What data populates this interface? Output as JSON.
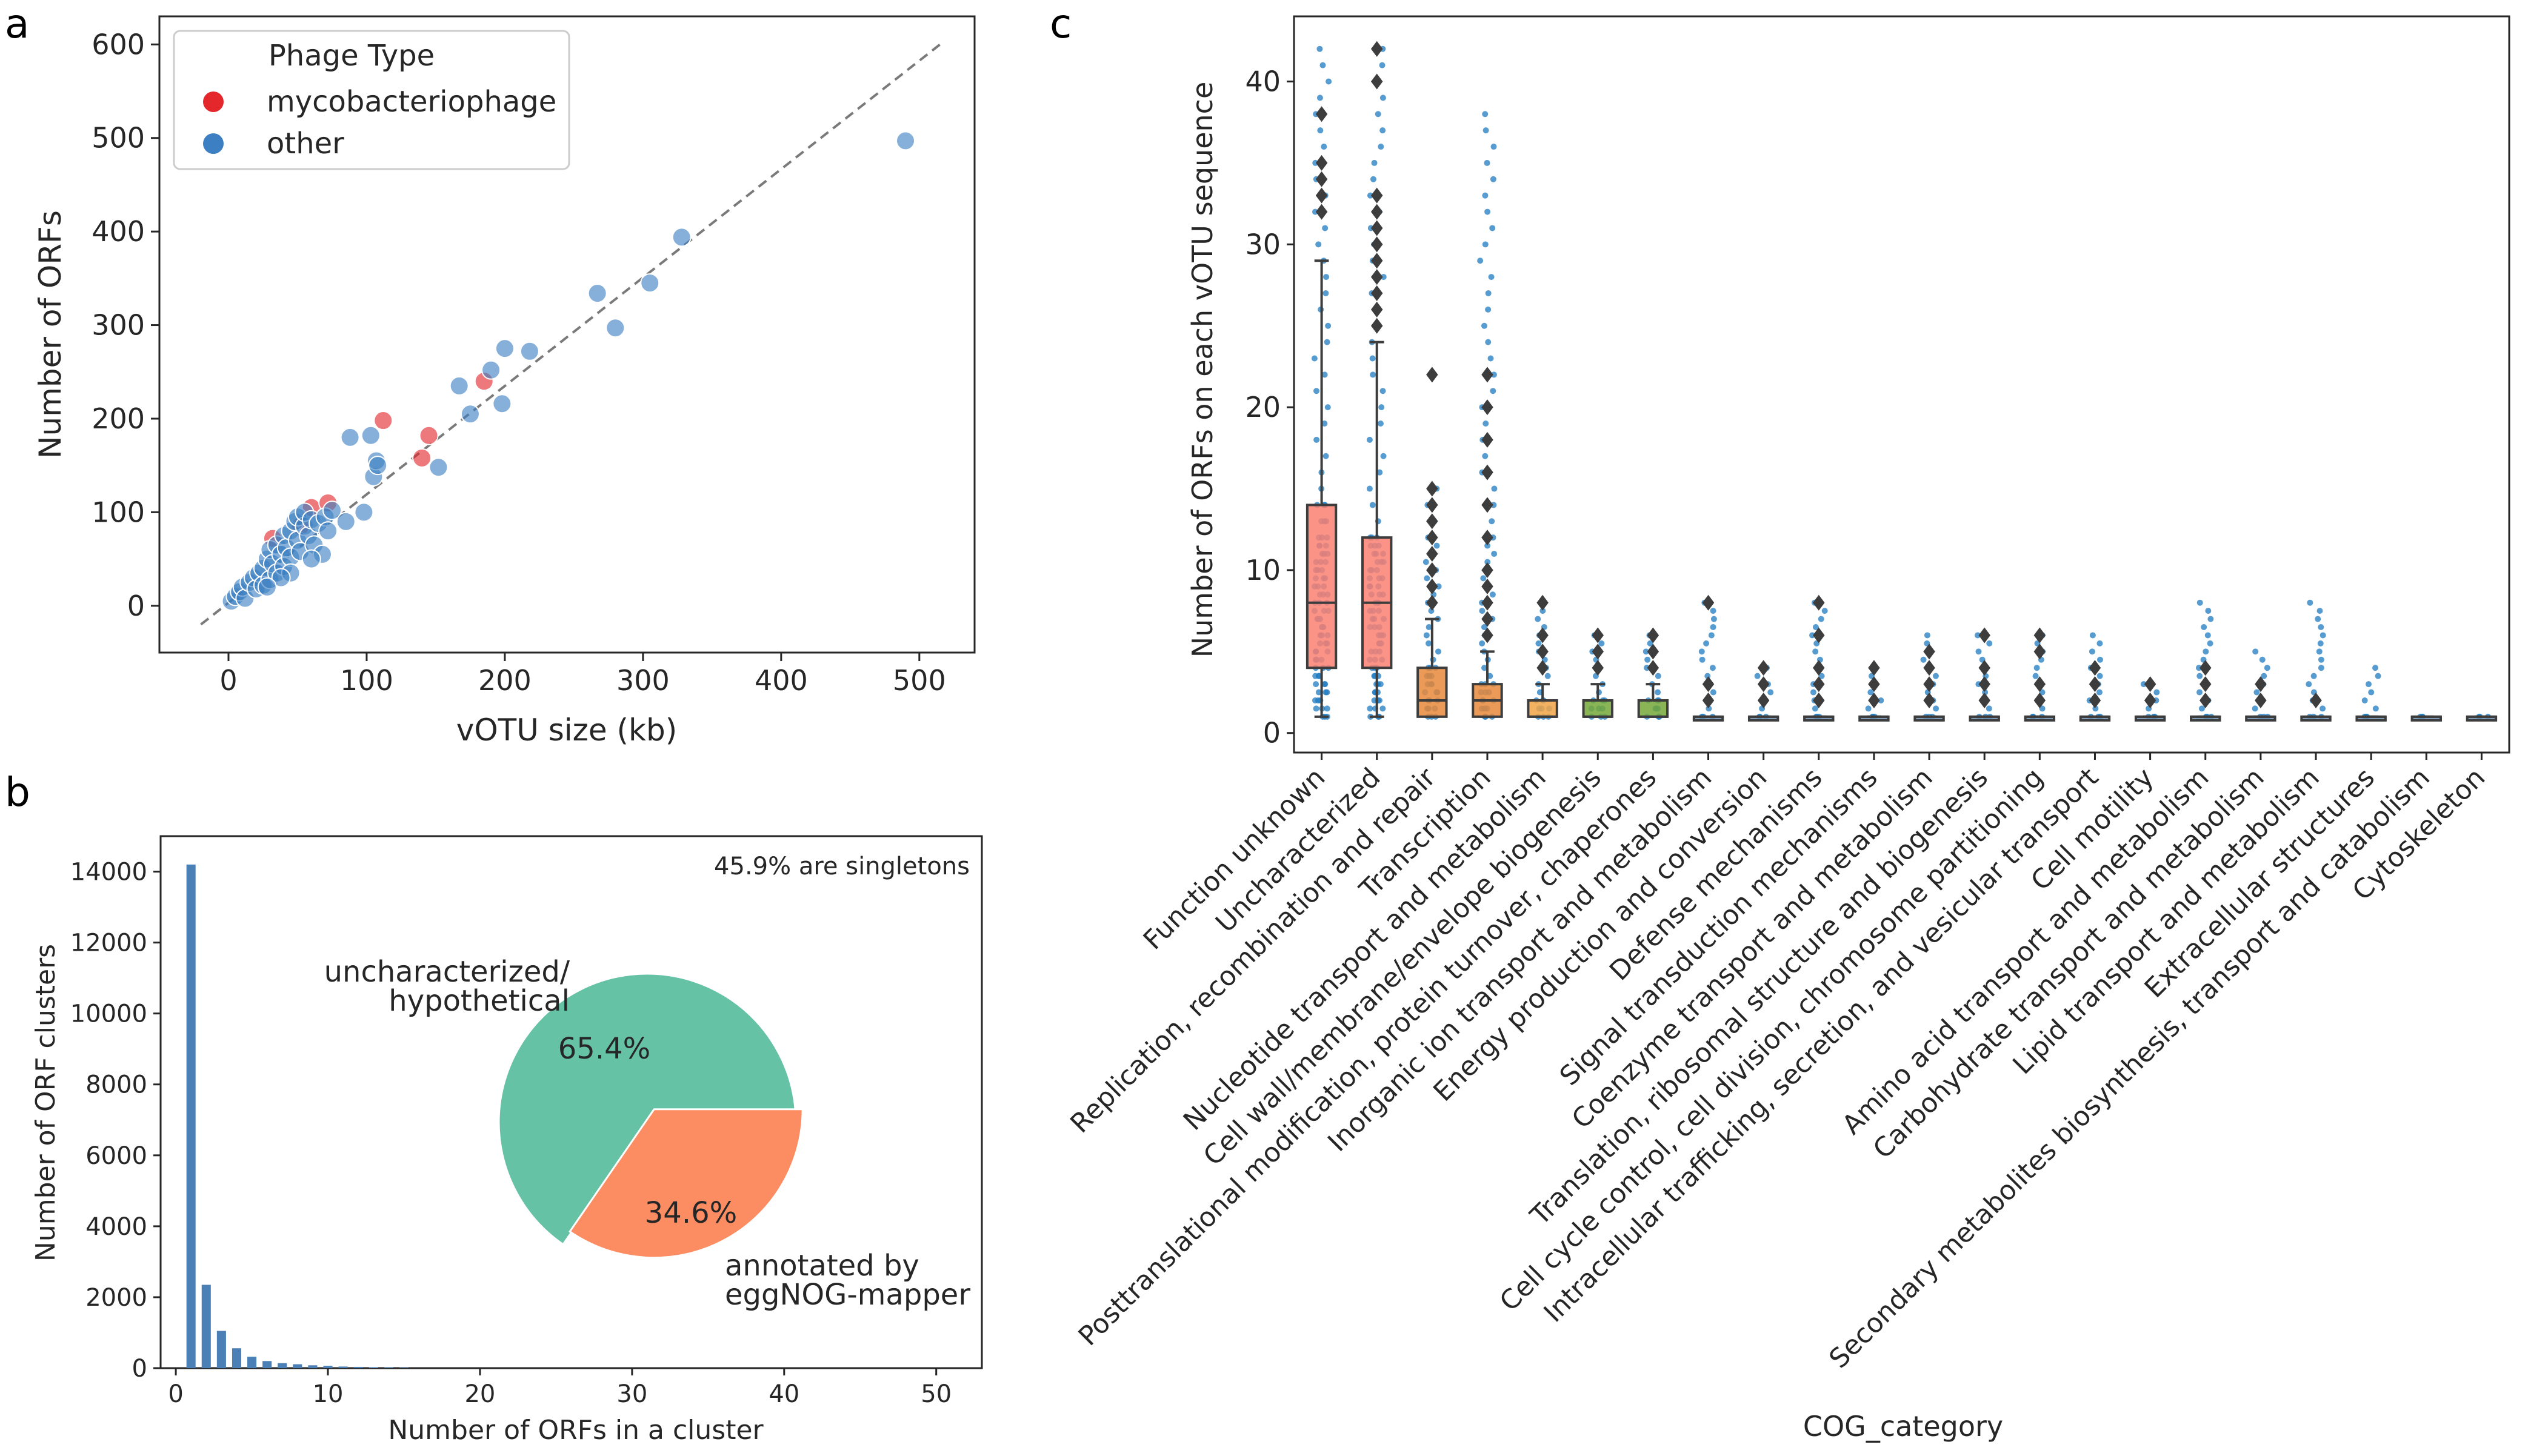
{
  "panels": {
    "a": "a",
    "b": "b",
    "c": "c"
  },
  "chart_data": [
    {
      "id": "a",
      "type": "scatter",
      "xlabel": "vOTU size (kb)",
      "ylabel": "Number of ORFs",
      "xlim": [
        -50,
        540
      ],
      "ylim": [
        -50,
        630
      ],
      "xticks": [
        0,
        100,
        200,
        300,
        400,
        500
      ],
      "yticks": [
        0,
        100,
        200,
        300,
        400,
        500,
        600
      ],
      "reference_line": {
        "from": [
          -20,
          -20
        ],
        "to": [
          515,
          600
        ]
      },
      "legend": {
        "title": "Phage Type",
        "position": "top-left"
      },
      "series": [
        {
          "name": "mycobacteriophage",
          "color": "#e3272b",
          "points": [
            [
              32,
              72
            ],
            [
              52,
              85
            ],
            [
              60,
              105
            ],
            [
              72,
              110
            ],
            [
              112,
              198
            ],
            [
              140,
              158
            ],
            [
              145,
              182
            ],
            [
              185,
              240
            ]
          ]
        },
        {
          "name": "other",
          "color": "#3c7fc2",
          "points": [
            [
              2,
              5
            ],
            [
              5,
              10
            ],
            [
              8,
              15
            ],
            [
              10,
              20
            ],
            [
              12,
              8
            ],
            [
              15,
              25
            ],
            [
              18,
              30
            ],
            [
              20,
              18
            ],
            [
              22,
              35
            ],
            [
              25,
              40
            ],
            [
              25,
              22
            ],
            [
              28,
              50
            ],
            [
              30,
              28
            ],
            [
              30,
              60
            ],
            [
              32,
              45
            ],
            [
              35,
              65
            ],
            [
              35,
              35
            ],
            [
              38,
              55
            ],
            [
              40,
              75
            ],
            [
              40,
              42
            ],
            [
              42,
              62
            ],
            [
              45,
              80
            ],
            [
              45,
              52
            ],
            [
              48,
              90
            ],
            [
              50,
              70
            ],
            [
              50,
              95
            ],
            [
              52,
              58
            ],
            [
              55,
              85
            ],
            [
              55,
              100
            ],
            [
              58,
              75
            ],
            [
              60,
              92
            ],
            [
              62,
              65
            ],
            [
              65,
              88
            ],
            [
              68,
              55
            ],
            [
              70,
              95
            ],
            [
              72,
              80
            ],
            [
              75,
              102
            ],
            [
              45,
              35
            ],
            [
              38,
              30
            ],
            [
              28,
              20
            ],
            [
              60,
              50
            ],
            [
              85,
              90
            ],
            [
              88,
              180
            ],
            [
              98,
              100
            ],
            [
              103,
              182
            ],
            [
              105,
              138
            ],
            [
              107,
              155
            ],
            [
              108,
              150
            ],
            [
              152,
              148
            ],
            [
              167,
              235
            ],
            [
              175,
              205
            ],
            [
              190,
              252
            ],
            [
              198,
              216
            ],
            [
              200,
              275
            ],
            [
              218,
              272
            ],
            [
              267,
              334
            ],
            [
              280,
              297
            ],
            [
              305,
              345
            ],
            [
              328,
              394
            ],
            [
              490,
              497
            ]
          ]
        }
      ]
    },
    {
      "id": "b",
      "type": "bar",
      "xlabel": "Number of ORFs in a cluster",
      "ylabel": "Number of ORF clusters",
      "xlim": [
        -1,
        53
      ],
      "ylim": [
        0,
        15000
      ],
      "xticks": [
        0,
        10,
        20,
        30,
        40,
        50
      ],
      "yticks": [
        0,
        2000,
        4000,
        6000,
        8000,
        10000,
        12000,
        14000
      ],
      "annotation": "45.9% are singletons",
      "bars": [
        [
          1,
          14200
        ],
        [
          2,
          2350
        ],
        [
          3,
          1050
        ],
        [
          4,
          560
        ],
        [
          5,
          320
        ],
        [
          6,
          200
        ],
        [
          7,
          140
        ],
        [
          8,
          110
        ],
        [
          9,
          80
        ],
        [
          10,
          65
        ],
        [
          11,
          45
        ],
        [
          12,
          35
        ],
        [
          13,
          25
        ],
        [
          14,
          20
        ],
        [
          15,
          15
        ]
      ],
      "inset_pie": {
        "slices": [
          {
            "label_lines": [
              "uncharacterized/",
              "hypothetical"
            ],
            "value": 65.4,
            "pct_label": "65.4%",
            "color": "#66c2a5"
          },
          {
            "label_lines": [
              "annotated by",
              "eggNOG-mapper"
            ],
            "value": 34.6,
            "pct_label": "34.6%",
            "color": "#fc8d62"
          }
        ]
      }
    },
    {
      "id": "c",
      "type": "box",
      "xlabel": "COG_category",
      "ylabel": "Number of ORFs on each vOTU sequence",
      "ylim": [
        -1.2,
        44
      ],
      "yticks": [
        0,
        10,
        20,
        30,
        40
      ],
      "categories": [
        {
          "name": "Function unknown",
          "color": "#fa8072",
          "q1": 4,
          "median": 8,
          "q3": 14,
          "lo": 1,
          "hi": 29,
          "outliers": [
            32,
            33,
            34,
            35,
            38
          ],
          "points_max": 42
        },
        {
          "name": "Uncharacterized",
          "color": "#fa8072",
          "q1": 4,
          "median": 8,
          "q3": 12,
          "lo": 1,
          "hi": 24,
          "outliers": [
            25,
            26,
            27,
            28,
            29,
            30,
            31,
            32,
            33,
            40,
            42
          ],
          "points_max": 42
        },
        {
          "name": "Replication, recombination and repair",
          "color": "#e8883a",
          "q1": 1,
          "median": 2,
          "q3": 4,
          "lo": 1,
          "hi": 7,
          "outliers": [
            8,
            9,
            10,
            11,
            12,
            13,
            14,
            15,
            22
          ],
          "points_max": 15
        },
        {
          "name": "Transcription",
          "color": "#e8883a",
          "q1": 1,
          "median": 2,
          "q3": 3,
          "lo": 1,
          "hi": 5,
          "outliers": [
            6,
            7,
            8,
            9,
            10,
            12,
            14,
            16,
            18,
            20,
            22
          ],
          "points_max": 38
        },
        {
          "name": "Nucleotide transport and metabolism",
          "color": "#f1a546",
          "q1": 1,
          "median": 1,
          "q3": 2,
          "lo": 1,
          "hi": 3,
          "outliers": [
            4,
            5,
            6,
            8
          ],
          "points_max": 8
        },
        {
          "name": "Cell wall/membrane/envelope biogenesis",
          "color": "#76a83a",
          "q1": 1,
          "median": 1,
          "q3": 2,
          "lo": 1,
          "hi": 3,
          "outliers": [
            4,
            5,
            6
          ],
          "points_max": 6
        },
        {
          "name": "Posttranslational modification, protein turnover, chaperones",
          "color": "#76a83a",
          "q1": 1,
          "median": 1,
          "q3": 2,
          "lo": 1,
          "hi": 3,
          "outliers": [
            4,
            5,
            6
          ],
          "points_max": 6
        },
        {
          "name": "Inorganic ion transport and metabolism",
          "color": "#6e8fb0",
          "q1": 1,
          "median": 1,
          "q3": 1,
          "lo": 1,
          "hi": 1,
          "outliers": [
            2,
            3,
            8
          ],
          "points_max": 8
        },
        {
          "name": "Energy production and conversion",
          "color": "#6e8fb0",
          "q1": 1,
          "median": 1,
          "q3": 1,
          "lo": 1,
          "hi": 1,
          "outliers": [
            2,
            3,
            4
          ],
          "points_max": 4
        },
        {
          "name": "Defense mechanisms",
          "color": "#6e8fb0",
          "q1": 1,
          "median": 1,
          "q3": 1,
          "lo": 1,
          "hi": 1,
          "outliers": [
            2,
            3,
            4,
            6,
            8
          ],
          "points_max": 8
        },
        {
          "name": "Signal transduction mechanisms",
          "color": "#6e8fb0",
          "q1": 1,
          "median": 1,
          "q3": 1,
          "lo": 1,
          "hi": 1,
          "outliers": [
            2,
            3,
            4
          ],
          "points_max": 4
        },
        {
          "name": "Coenzyme transport and metabolism",
          "color": "#6e8fb0",
          "q1": 1,
          "median": 1,
          "q3": 1,
          "lo": 1,
          "hi": 1,
          "outliers": [
            2,
            3,
            4,
            5
          ],
          "points_max": 6
        },
        {
          "name": "Translation, ribosomal structure and biogenesis",
          "color": "#6e8fb0",
          "q1": 1,
          "median": 1,
          "q3": 1,
          "lo": 1,
          "hi": 1,
          "outliers": [
            2,
            3,
            4,
            6
          ],
          "points_max": 6
        },
        {
          "name": "Cell cycle control, cell division, chromosome partitioning",
          "color": "#6e8fb0",
          "q1": 1,
          "median": 1,
          "q3": 1,
          "lo": 1,
          "hi": 1,
          "outliers": [
            2,
            3,
            5,
            6
          ],
          "points_max": 6
        },
        {
          "name": "Intracellular trafficking, secretion, and vesicular transport",
          "color": "#6e8fb0",
          "q1": 1,
          "median": 1,
          "q3": 1,
          "lo": 1,
          "hi": 1,
          "outliers": [
            2,
            3,
            4
          ],
          "points_max": 6
        },
        {
          "name": "Cell motility",
          "color": "#6e8fb0",
          "q1": 1,
          "median": 1,
          "q3": 1,
          "lo": 1,
          "hi": 1,
          "outliers": [
            2,
            3
          ],
          "points_max": 3
        },
        {
          "name": "Amino acid transport and metabolism",
          "color": "#6e8fb0",
          "q1": 1,
          "median": 1,
          "q3": 1,
          "lo": 1,
          "hi": 1,
          "outliers": [
            2,
            3,
            4
          ],
          "points_max": 8
        },
        {
          "name": "Carbohydrate transport and metabolism",
          "color": "#6e8fb0",
          "q1": 1,
          "median": 1,
          "q3": 1,
          "lo": 1,
          "hi": 1,
          "outliers": [
            2,
            3
          ],
          "points_max": 5
        },
        {
          "name": "Lipid transport and metabolism",
          "color": "#6e8fb0",
          "q1": 1,
          "median": 1,
          "q3": 1,
          "lo": 1,
          "hi": 1,
          "outliers": [
            2
          ],
          "points_max": 8
        },
        {
          "name": "Extracellular structures",
          "color": "#6e8fb0",
          "q1": 1,
          "median": 1,
          "q3": 1,
          "lo": 1,
          "hi": 1,
          "outliers": [],
          "points_max": 4
        },
        {
          "name": "Secondary metabolites biosynthesis, transport and catabolism",
          "color": "#6e8fb0",
          "q1": 1,
          "median": 1,
          "q3": 1,
          "lo": 1,
          "hi": 1,
          "outliers": [],
          "points_max": 1
        },
        {
          "name": "Cytoskeleton",
          "color": "#6e8fb0",
          "q1": 1,
          "median": 1,
          "q3": 1,
          "lo": 1,
          "hi": 1,
          "outliers": [],
          "points_max": 1
        }
      ]
    }
  ]
}
